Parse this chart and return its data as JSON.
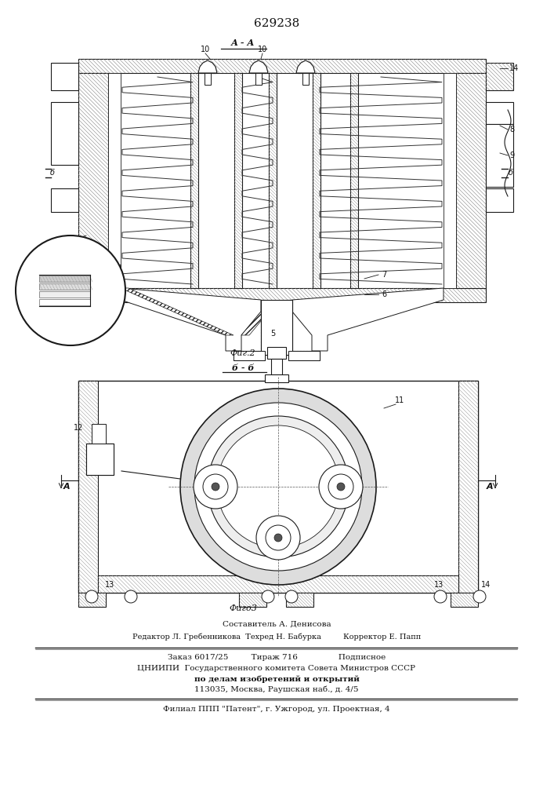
{
  "patent_number": "629238",
  "fig2_caption": "Фиг.2",
  "fig3_caption": "Фигο3",
  "fig_label_aa": "А - А",
  "fig_label_bb": "б - б",
  "footer_composer": "Составитель А. Денисова",
  "footer_editor": "Редактор Л. Гребенникова  Техред Н. Бабурка         Корректор Е. Папп",
  "footer_zakaz": "Заказ 6017/25         Тираж 716                Подписное",
  "footer_cniipи": "ЦНИИПИ  Государственного комитета Совета Министров СССР",
  "footer_dela": "по делам изобретений и открытий",
  "footer_addr": "113035, Москва, Раушская наб., д. 4/5",
  "footer_filial": "Филиал ППП \"Патент\", г. Ужгород, ул. Проектная, 4",
  "bg_color": "#ffffff",
  "line_color": "#1a1a1a",
  "text_color": "#111111",
  "hatch_gray": "#888888"
}
